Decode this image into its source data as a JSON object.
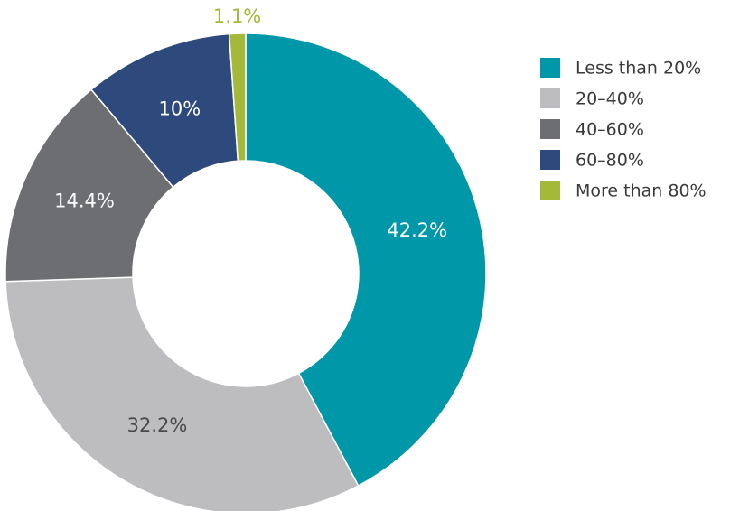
{
  "chart_data": {
    "type": "donut",
    "categories": [
      "Less than 20%",
      "20–40%",
      "40–60%",
      "60–80%",
      "More than 80%"
    ],
    "values": [
      42.2,
      32.2,
      14.4,
      10,
      1.1
    ],
    "value_labels": [
      "42.2%",
      "32.2%",
      "14.4%",
      "10%",
      "1.1%"
    ],
    "colors": [
      "#0097a9",
      "#bdbdbf",
      "#6d6e71",
      "#2e4a7d",
      "#a4b93a"
    ],
    "legend": "right"
  }
}
